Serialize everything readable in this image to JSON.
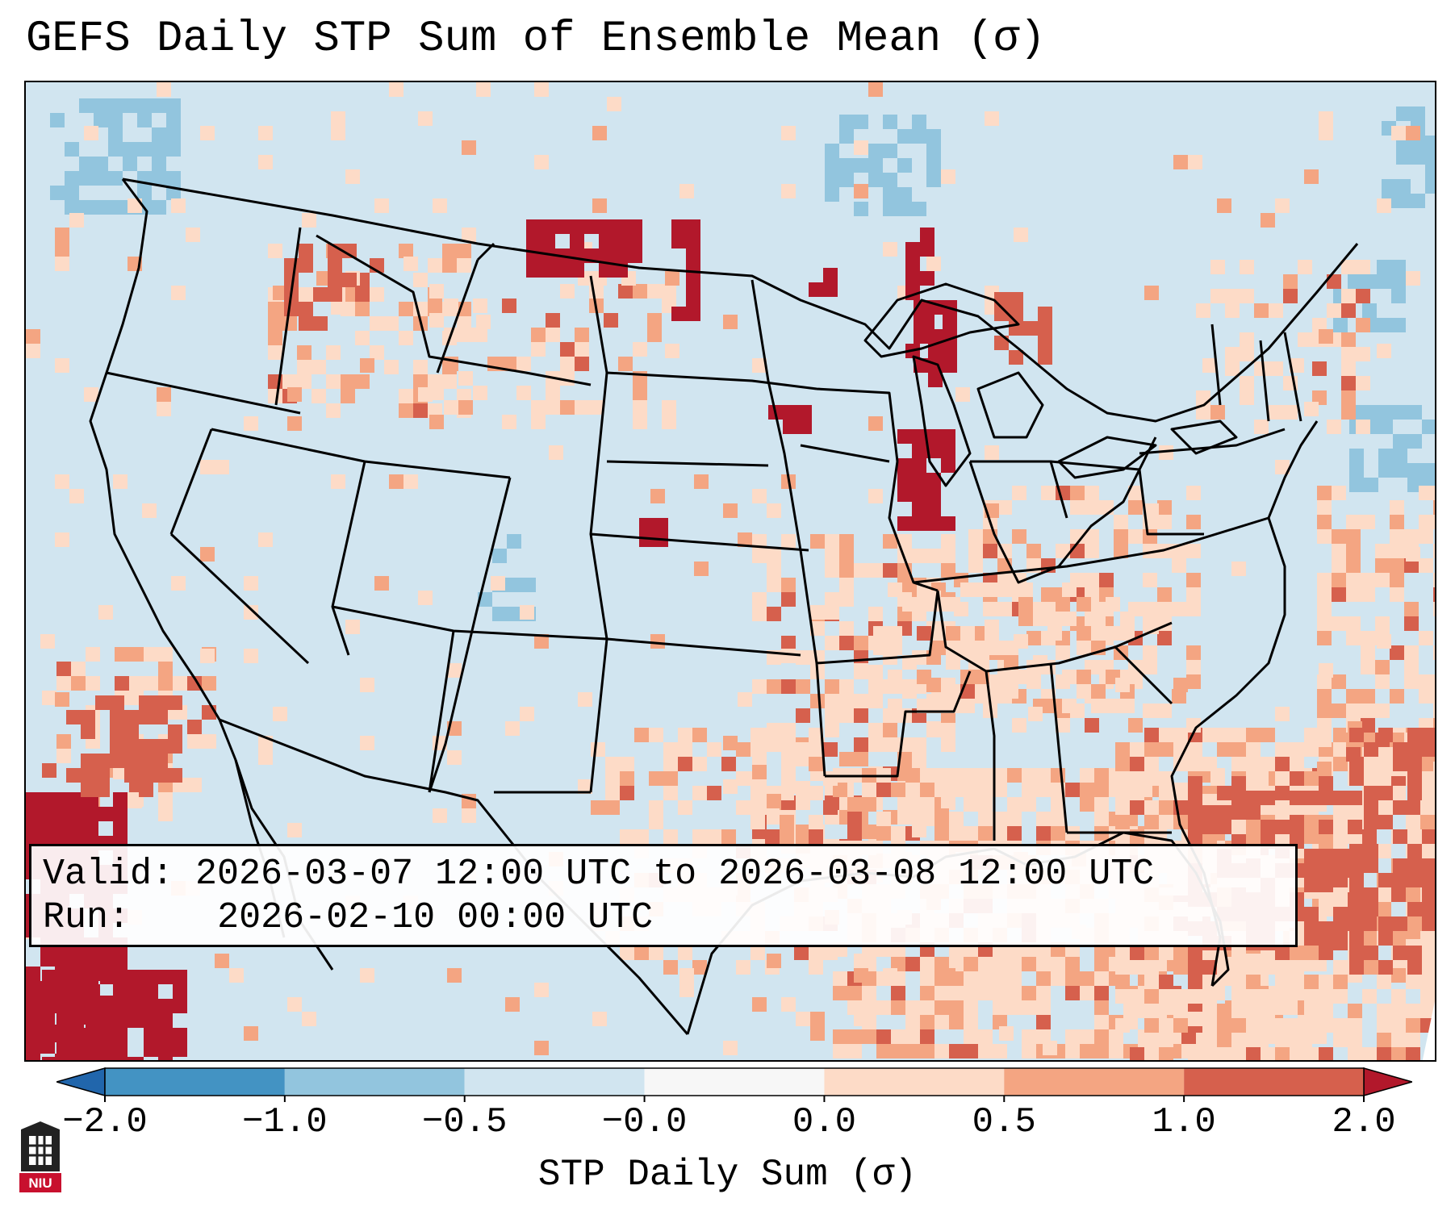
{
  "title": "GEFS Daily STP Sum of Ensemble Mean (σ)",
  "info": {
    "valid_label": "Valid:",
    "valid_value": "2026-03-07 12:00 UTC to 2026-03-08 12:00 UTC",
    "run_label": "Run:",
    "run_value": "2026-02-10 00:00 UTC"
  },
  "colorbar": {
    "label": "STP Daily Sum (σ)",
    "ticks": [
      "−2.0",
      "−1.0",
      "−0.5",
      "−0.0",
      "0.0",
      "0.5",
      "1.0",
      "2.0"
    ],
    "bin_colors": [
      "#4393c3",
      "#92c5de",
      "#d1e5f0",
      "#f7f7f7",
      "#fddbc7",
      "#f4a582",
      "#d6604d"
    ],
    "extend_low_color": "#2166ac",
    "extend_high_color": "#b2182b"
  },
  "colors": {
    "deep_red": "#b2182b",
    "red": "#d6604d",
    "salmon": "#f4a582",
    "peach": "#fddbc7",
    "background": "#d1e5f0",
    "blue": "#92c5de"
  },
  "logo": {
    "text": "NIU"
  }
}
